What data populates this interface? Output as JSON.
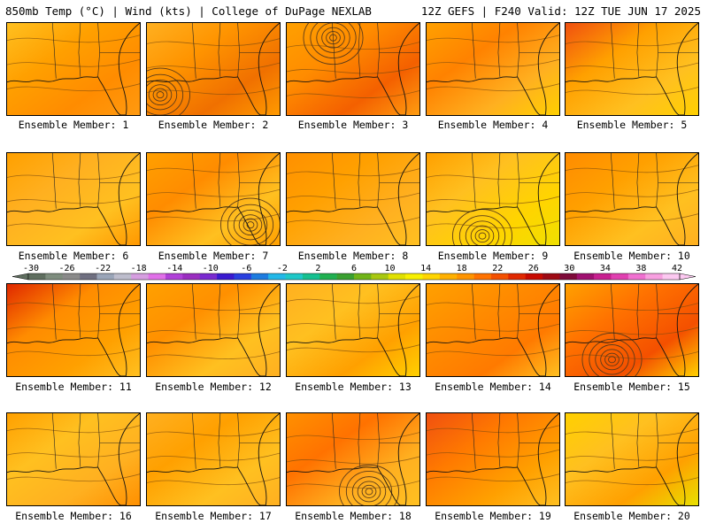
{
  "header": {
    "left": "850mb Temp (°C) | Wind (kts) | College of DuPage NEXLAB",
    "right": "12Z GEFS | F240 Valid: 12Z TUE JUN 17 2025"
  },
  "colorbar": {
    "ticks": [
      "-30",
      "-26",
      "-22",
      "-18",
      "-14",
      "-10",
      "-6",
      "-2",
      "2",
      "6",
      "10",
      "14",
      "18",
      "22",
      "26",
      "30",
      "34",
      "38",
      "42"
    ],
    "colors": [
      "#5f6e5f",
      "#7e8d7e",
      "#8a8a8a",
      "#6f6f80",
      "#9aa5b8",
      "#bdbdcc",
      "#d69ee0",
      "#e070e8",
      "#b040d8",
      "#9a2ec0",
      "#7a2ad0",
      "#3a1ad0",
      "#2a40e0",
      "#1e7ce0",
      "#22b8e8",
      "#1ec8c8",
      "#16c090",
      "#20b050",
      "#3aa030",
      "#70b418",
      "#a8c810",
      "#e0e000",
      "#f8f000",
      "#ffd500",
      "#ffb000",
      "#ff9400",
      "#ff7200",
      "#f45000",
      "#e02800",
      "#c80a00",
      "#9e0a14",
      "#7e0a3a",
      "#a01070",
      "#c82090",
      "#e040b0",
      "#f070d0",
      "#f8a0e0",
      "#fcc8f0"
    ]
  },
  "members": [
    {
      "label": "Ensemble Member: 1",
      "c1": "#ffc020",
      "c2": "#ffa000",
      "c3": "#ff8c00",
      "c4": "#ff9a10",
      "center": null
    },
    {
      "label": "Ensemble Member: 2",
      "c1": "#ffb020",
      "c2": "#ff9400",
      "c3": "#f07000",
      "c4": "#ff9a00",
      "center": [
        0.1,
        0.78
      ]
    },
    {
      "label": "Ensemble Member: 3",
      "c1": "#ffa000",
      "c2": "#ff8c00",
      "c3": "#f46000",
      "c4": "#ff9c10",
      "center": [
        0.35,
        0.16
      ]
    },
    {
      "label": "Ensemble Member: 4",
      "c1": "#ffa000",
      "c2": "#ff8200",
      "c3": "#ffb020",
      "c4": "#ffd000",
      "center": null
    },
    {
      "label": "Ensemble Member: 5",
      "c1": "#f05010",
      "c2": "#ffa000",
      "c3": "#ffc020",
      "c4": "#ffd000",
      "center": null
    },
    {
      "label": "Ensemble Member: 6",
      "c1": "#ffa000",
      "c2": "#ffb020",
      "c3": "#ffc020",
      "c4": "#ff9800",
      "center": null
    },
    {
      "label": "Ensemble Member: 7",
      "c1": "#ffa000",
      "c2": "#ff8c00",
      "c3": "#ffc020",
      "c4": "#ffa000",
      "center": [
        0.78,
        0.78
      ]
    },
    {
      "label": "Ensemble Member: 8",
      "c1": "#ff9000",
      "c2": "#ffa000",
      "c3": "#ffb020",
      "c4": "#ffc020",
      "center": null
    },
    {
      "label": "Ensemble Member: 9",
      "c1": "#ffa000",
      "c2": "#ffc020",
      "c3": "#ffd400",
      "c4": "#f0e000",
      "center": [
        0.42,
        0.9
      ]
    },
    {
      "label": "Ensemble Member: 10",
      "c1": "#ff8c00",
      "c2": "#ffa000",
      "c3": "#ffc020",
      "c4": "#ffb020",
      "center": null
    },
    {
      "label": "Ensemble Member: 11",
      "c1": "#e02800",
      "c2": "#ff8c00",
      "c3": "#ffa000",
      "c4": "#ffc020",
      "center": null
    },
    {
      "label": "Ensemble Member: 12",
      "c1": "#ffa000",
      "c2": "#ff9000",
      "c3": "#ffc020",
      "c4": "#ffb020",
      "center": null
    },
    {
      "label": "Ensemble Member: 13",
      "c1": "#ffb020",
      "c2": "#ffc020",
      "c3": "#ffa000",
      "c4": "#ffd000",
      "center": null
    },
    {
      "label": "Ensemble Member: 14",
      "c1": "#ffa000",
      "c2": "#ff8c00",
      "c3": "#ff7a00",
      "c4": "#ffc020",
      "center": null
    },
    {
      "label": "Ensemble Member: 15",
      "c1": "#ffa000",
      "c2": "#ff7200",
      "c3": "#f45000",
      "c4": "#ffd000",
      "center": [
        0.35,
        0.82
      ]
    },
    {
      "label": "Ensemble Member: 16",
      "c1": "#ffa000",
      "c2": "#ffc020",
      "c3": "#ffb020",
      "c4": "#ff9000",
      "center": null
    },
    {
      "label": "Ensemble Member: 17",
      "c1": "#ffb020",
      "c2": "#ffa000",
      "c3": "#ffc020",
      "c4": "#ffb020",
      "center": null
    },
    {
      "label": "Ensemble Member: 18",
      "c1": "#ff9000",
      "c2": "#ff7200",
      "c3": "#ffb020",
      "c4": "#ffc020",
      "center": [
        0.62,
        0.85
      ]
    },
    {
      "label": "Ensemble Member: 19",
      "c1": "#f05010",
      "c2": "#ff7a00",
      "c3": "#ffa000",
      "c4": "#ffc020",
      "center": null
    },
    {
      "label": "Ensemble Member: 20",
      "c1": "#ffd000",
      "c2": "#ffc020",
      "c3": "#ffa000",
      "c4": "#e8e000",
      "center": null
    }
  ]
}
